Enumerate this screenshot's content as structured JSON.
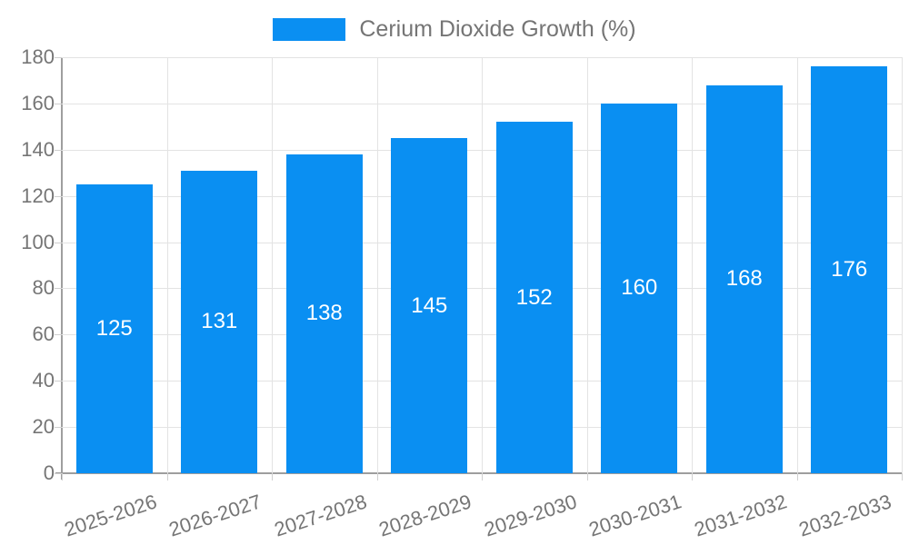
{
  "legend": {
    "label": "Cerium Dioxide Growth (%)"
  },
  "colors": {
    "bar": "#0a8ff2",
    "grid": "#e3e3e3",
    "axis": "#9e9e9e",
    "tickmark": "#d0d0d0",
    "text": "#757575",
    "value_label": "#ffffff"
  },
  "chart_data": {
    "type": "bar",
    "title": "Cerium Dioxide Growth (%)",
    "categories": [
      "2025-2026",
      "2026-2027",
      "2027-2028",
      "2028-2029",
      "2029-2030",
      "2030-2031",
      "2031-2032",
      "2032-2033"
    ],
    "series": [
      {
        "name": "Cerium Dioxide Growth (%)",
        "values": [
          125,
          131,
          138,
          145,
          152,
          160,
          168,
          176
        ]
      }
    ],
    "xlabel": "",
    "ylabel": "",
    "ylim": [
      0,
      180
    ],
    "ytick_step": 20,
    "yticks": [
      0,
      20,
      40,
      60,
      80,
      100,
      120,
      140,
      160,
      180
    ],
    "grid": true,
    "value_labels": "inside-center",
    "legend_position": "top-center"
  }
}
